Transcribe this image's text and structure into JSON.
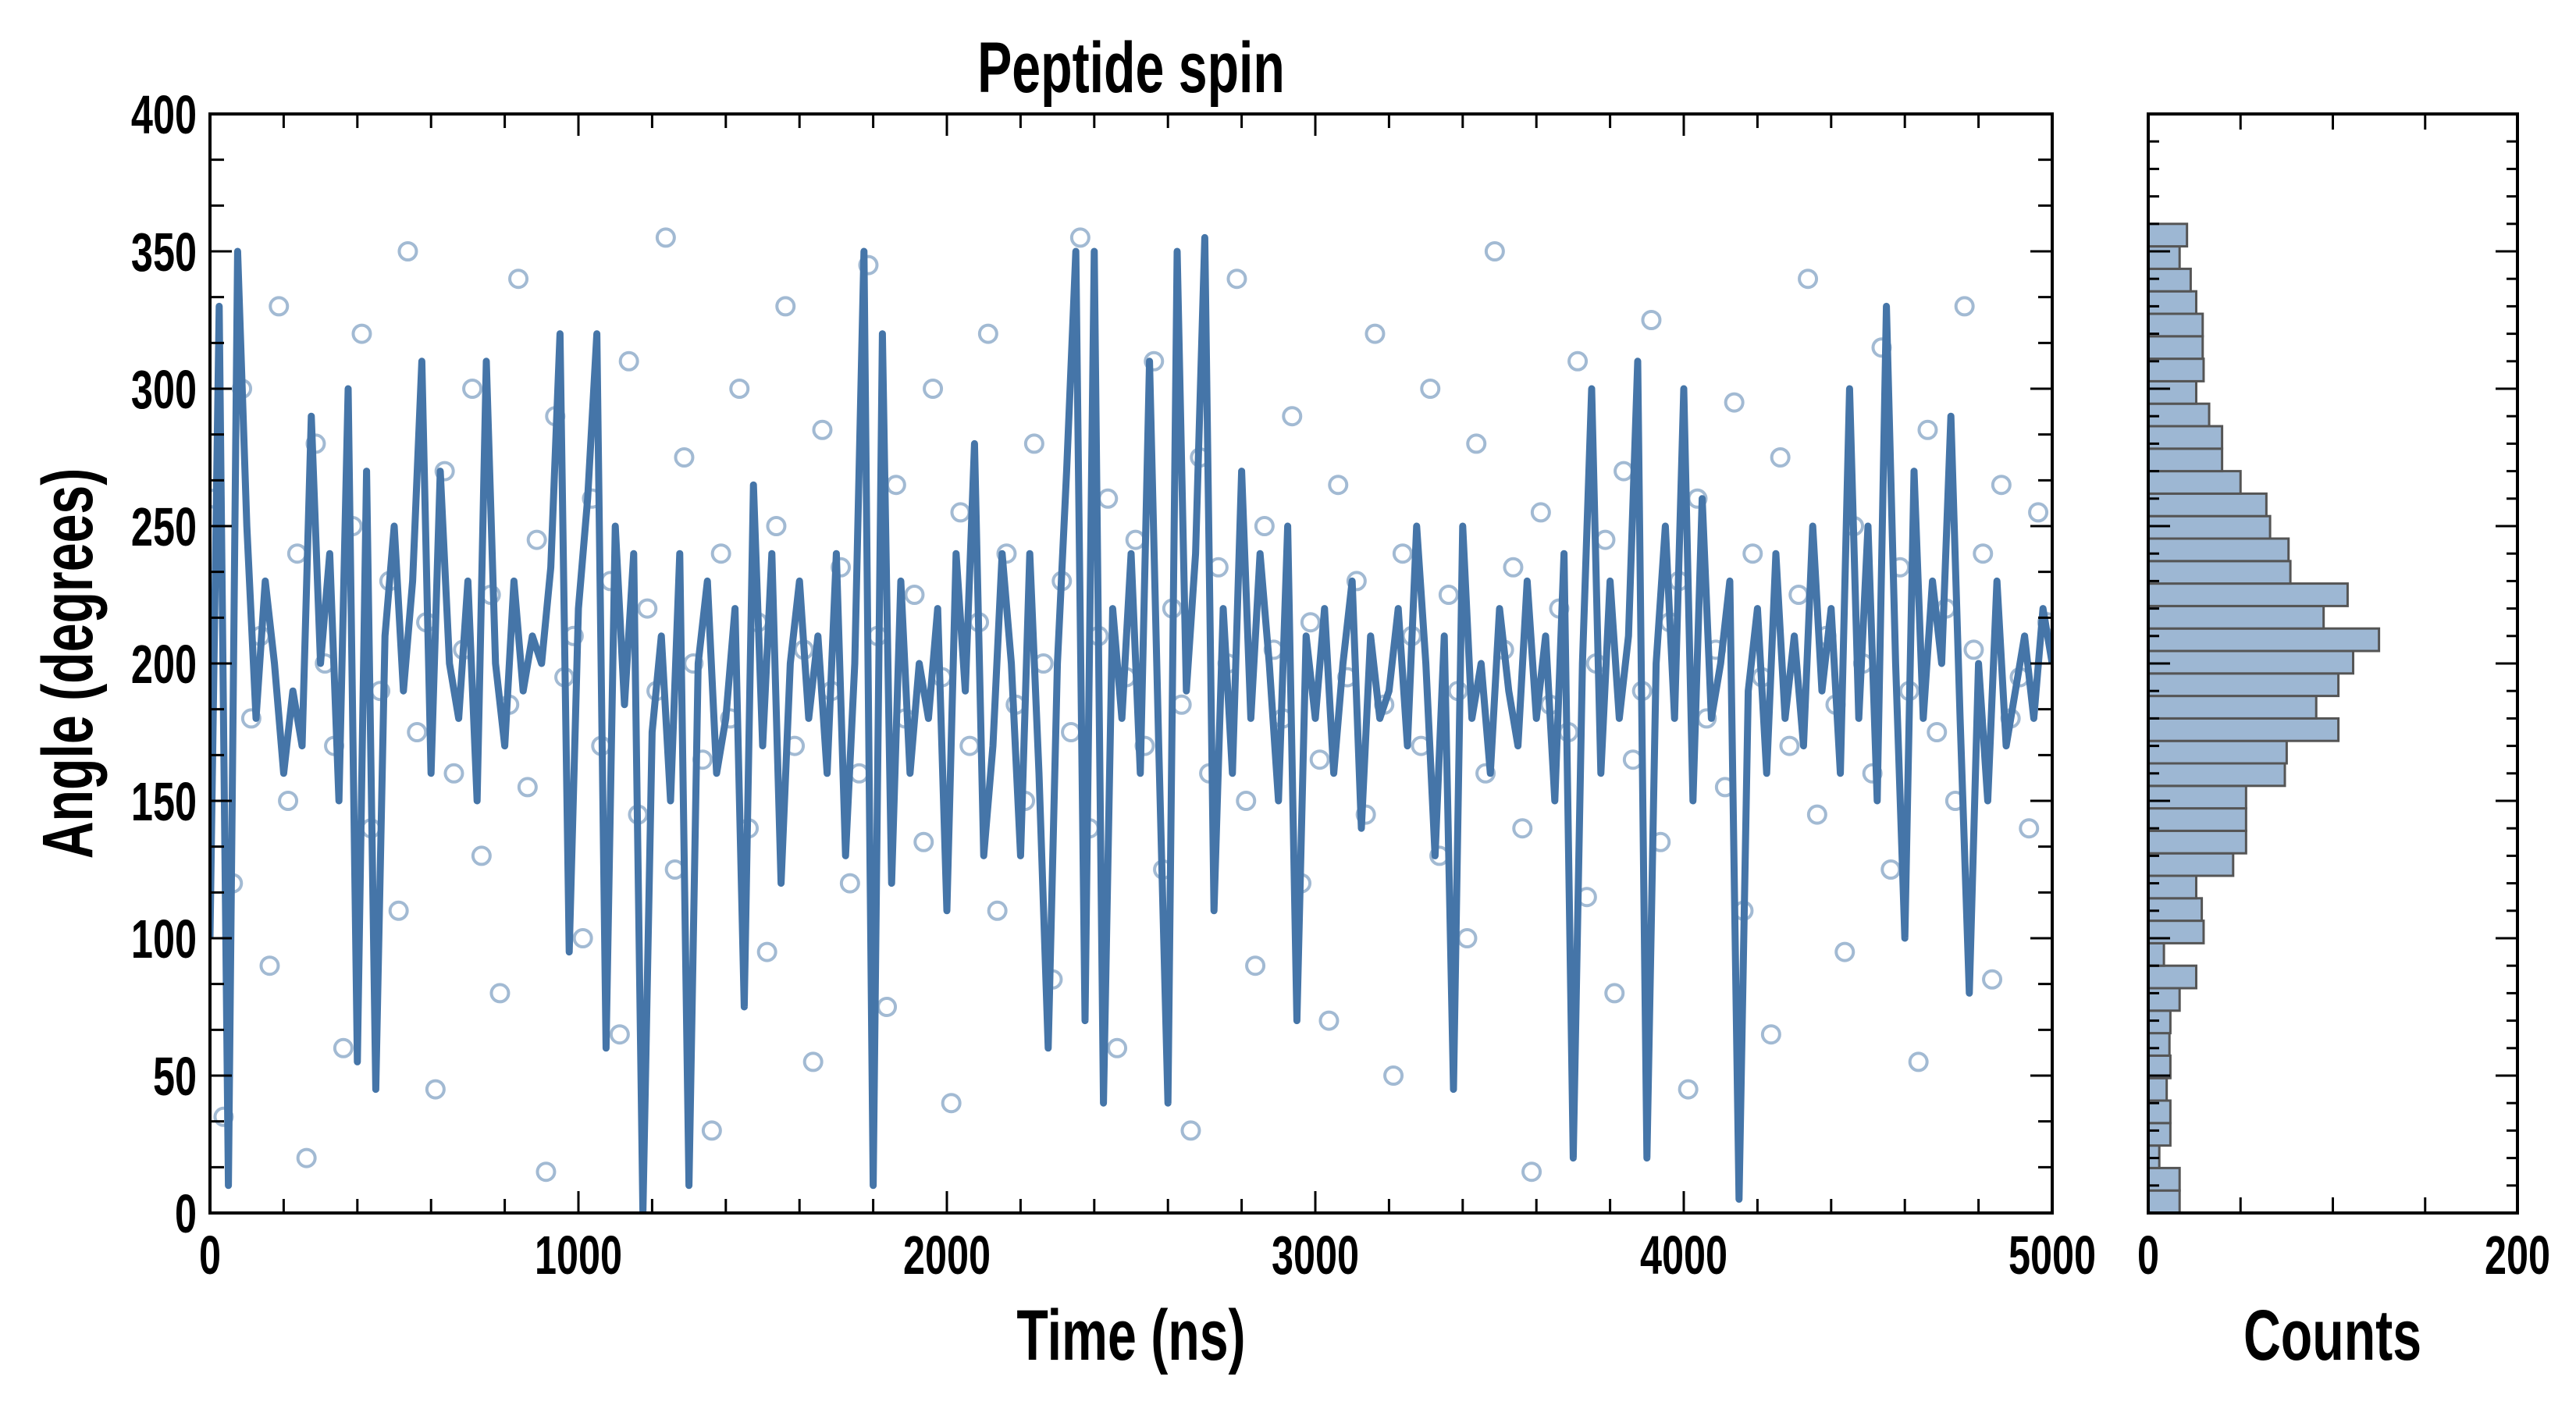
{
  "chart_data": [
    {
      "type": "line",
      "title": "Peptide spin",
      "xlabel": "Time (ns)",
      "ylabel": "Angle (degrees)",
      "xlim": [
        0,
        5000
      ],
      "ylim": [
        0,
        400
      ],
      "xticks": [
        "0",
        "1000",
        "2000",
        "3000",
        "4000",
        "5000"
      ],
      "yticks": [
        "0",
        "50",
        "100",
        "150",
        "200",
        "250",
        "300",
        "350",
        "400"
      ],
      "grid": false,
      "colors": {
        "line": "#4575a8",
        "markers": "#4575a8"
      },
      "line_series": {
        "name": "angle trace",
        "t_start": 0,
        "t_step": 25,
        "angle": [
          100,
          330,
          10,
          350,
          250,
          180,
          230,
          200,
          160,
          190,
          170,
          290,
          200,
          240,
          150,
          300,
          55,
          270,
          45,
          210,
          250,
          190,
          230,
          310,
          160,
          270,
          200,
          180,
          230,
          150,
          310,
          200,
          170,
          230,
          190,
          210,
          200,
          235,
          320,
          95,
          220,
          260,
          320,
          60,
          250,
          185,
          240,
          0,
          175,
          210,
          150,
          240,
          10,
          200,
          230,
          160,
          180,
          220,
          75,
          265,
          170,
          240,
          120,
          200,
          230,
          180,
          210,
          160,
          240,
          130,
          200,
          350,
          10,
          320,
          120,
          230,
          160,
          200,
          180,
          220,
          110,
          240,
          190,
          280,
          130,
          170,
          240,
          200,
          130,
          240,
          160,
          60,
          200,
          270,
          350,
          70,
          350,
          40,
          220,
          180,
          240,
          160,
          310,
          170,
          40,
          350,
          190,
          240,
          355,
          110,
          220,
          160,
          270,
          180,
          240,
          200,
          150,
          250,
          70,
          210,
          180,
          220,
          160,
          200,
          230,
          140,
          210,
          180,
          190,
          220,
          170,
          250,
          200,
          130,
          210,
          45,
          250,
          180,
          200,
          160,
          220,
          190,
          170,
          230,
          180,
          210,
          150,
          240,
          20,
          200,
          300,
          160,
          230,
          180,
          210,
          310,
          20,
          200,
          250,
          180,
          300,
          150,
          260,
          180,
          200,
          230,
          5,
          190,
          220,
          160,
          240,
          180,
          210,
          170,
          250,
          190,
          220,
          160,
          300,
          180,
          250,
          150,
          330,
          200,
          100,
          270,
          180,
          230,
          200,
          290,
          180,
          80,
          200,
          150,
          230,
          170,
          190,
          210,
          180,
          220,
          200
        ]
      },
      "scatter_series": {
        "name": "angle samples",
        "t_start": 12,
        "t_step": 25,
        "angle": [
          260,
          35,
          120,
          300,
          180,
          210,
          90,
          330,
          150,
          240,
          20,
          280,
          200,
          170,
          60,
          250,
          320,
          140,
          190,
          230,
          110,
          350,
          175,
          215,
          45,
          270,
          160,
          205,
          300,
          130,
          225,
          80,
          185,
          340,
          155,
          245,
          15,
          290,
          195,
          210,
          100,
          260,
          170,
          230,
          65,
          310,
          145,
          220,
          190,
          355,
          125,
          275,
          200,
          165,
          30,
          240,
          180,
          300,
          140,
          215,
          95,
          250,
          330,
          170,
          205,
          55,
          285,
          190,
          235,
          120,
          160,
          345,
          210,
          75,
          265,
          180,
          225,
          135,
          300,
          195,
          40,
          255,
          170,
          215,
          320,
          110,
          240,
          185,
          150,
          280,
          200,
          85,
          230,
          175,
          355,
          140,
          210,
          260,
          60,
          195,
          245,
          170,
          310,
          125,
          220,
          185,
          30,
          275,
          160,
          235,
          200,
          340,
          150,
          90,
          250,
          205,
          180,
          290,
          120,
          215,
          165,
          70,
          265,
          195,
          230,
          145,
          320,
          185,
          50,
          240,
          210,
          170,
          300,
          130,
          225,
          190,
          100,
          280,
          160,
          350,
          205,
          235,
          140,
          15,
          255,
          185,
          220,
          175,
          310,
          115,
          200,
          245,
          80,
          270,
          165,
          190,
          325,
          135,
          215,
          230,
          45,
          260,
          180,
          205,
          155,
          295,
          110,
          240,
          195,
          65,
          275,
          170,
          225,
          340,
          145,
          210,
          185,
          95,
          250,
          200,
          160,
          315,
          125,
          235,
          190,
          55,
          285,
          175,
          220,
          150,
          330,
          205,
          240,
          85,
          265,
          180,
          195,
          140,
          255,
          215
        ]
      }
    },
    {
      "type": "bar",
      "orientation": "horizontal",
      "xlabel": "Counts",
      "xlim": [
        0,
        200
      ],
      "ylim": [
        0,
        400
      ],
      "xticks": [
        "0",
        "200"
      ],
      "bin_range": [
        0,
        360
      ],
      "colors": {
        "fill": "#9db7d3",
        "edge": "#555555"
      },
      "counts_bottom_to_top": [
        17,
        17,
        6,
        12,
        12,
        10,
        12,
        11.5,
        12,
        17,
        26,
        8.5,
        30,
        29,
        26,
        46,
        53,
        53,
        53,
        74,
        75,
        103,
        91,
        103,
        111,
        125,
        95,
        108,
        77,
        76,
        66,
        64,
        50,
        40,
        40,
        33,
        26,
        30,
        29.5,
        29.5,
        26,
        23,
        17,
        21
      ]
    }
  ]
}
